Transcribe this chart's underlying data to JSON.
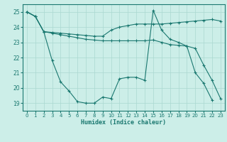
{
  "xlabel": "Humidex (Indice chaleur)",
  "bg_color": "#cceee8",
  "line_color": "#1a7870",
  "grid_color": "#aad8d0",
  "xlim": [
    -0.5,
    23.5
  ],
  "ylim": [
    18.5,
    25.5
  ],
  "xticks": [
    0,
    1,
    2,
    3,
    4,
    5,
    6,
    7,
    8,
    9,
    10,
    11,
    12,
    13,
    14,
    15,
    16,
    17,
    18,
    19,
    20,
    21,
    22,
    23
  ],
  "yticks": [
    19,
    20,
    21,
    22,
    23,
    24,
    25
  ],
  "series": [
    [
      25.0,
      24.7,
      23.7,
      23.65,
      23.6,
      23.55,
      23.5,
      23.45,
      23.4,
      23.4,
      23.8,
      24.0,
      24.1,
      24.2,
      24.2,
      24.2,
      24.2,
      24.25,
      24.3,
      24.35,
      24.4,
      24.45,
      24.5,
      24.4
    ],
    [
      25.0,
      24.7,
      23.7,
      23.6,
      23.5,
      23.4,
      23.3,
      23.2,
      23.15,
      23.1,
      23.1,
      23.1,
      23.1,
      23.1,
      23.1,
      23.15,
      23.0,
      22.85,
      22.8,
      22.75,
      22.6,
      21.5,
      20.5,
      19.3
    ],
    [
      25.0,
      24.7,
      23.7,
      21.8,
      20.4,
      19.8,
      19.1,
      19.0,
      19.0,
      19.4,
      19.3,
      20.6,
      20.7,
      20.7,
      20.5,
      25.1,
      23.8,
      23.2,
      23.0,
      22.75,
      21.0,
      20.3,
      19.2,
      null
    ]
  ]
}
